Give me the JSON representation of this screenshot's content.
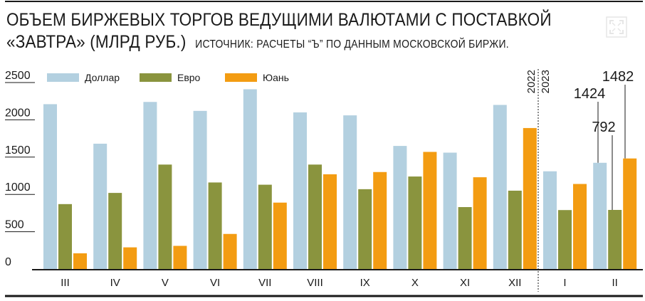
{
  "header": {
    "title_line1": "ОБЪЕМ БИРЖЕВЫХ ТОРГОВ ВЕДУЩИМИ ВАЛЮТАМИ С ПОСТАВКОЙ",
    "title_line2": "«ЗАВТРА» (МЛРД РУБ.)",
    "source": "ИСТОЧНИК: РАСЧЕТЫ “Ъ” ПО ДАННЫМ МОСКОВСКОЙ БИРЖИ."
  },
  "icons": {
    "expand": "expand-icon"
  },
  "colors": {
    "dollar": "#b3d0e0",
    "euro": "#8a943e",
    "yuan": "#f39c12",
    "text": "#1a1a1a",
    "rule": "#1a1a1a"
  },
  "chart_data": {
    "type": "bar",
    "categories": [
      "III",
      "IV",
      "V",
      "VI",
      "VII",
      "VIII",
      "IX",
      "X",
      "XI",
      "XII",
      "I",
      "II"
    ],
    "series": [
      {
        "name": "Доллар",
        "key": "dollar",
        "values": [
          2210,
          1680,
          2240,
          2120,
          2410,
          2100,
          2060,
          1650,
          1560,
          2200,
          1310,
          1424
        ]
      },
      {
        "name": "Евро",
        "key": "euro",
        "values": [
          870,
          1020,
          1400,
          1160,
          1130,
          1400,
          1070,
          1240,
          830,
          1050,
          790,
          792
        ]
      },
      {
        "name": "Юань",
        "key": "yuan",
        "values": [
          210,
          290,
          310,
          470,
          890,
          1270,
          1300,
          1570,
          1230,
          1890,
          1140,
          1482
        ]
      }
    ],
    "ylim": [
      0,
      2500
    ],
    "yticks": [
      "2500",
      "2000",
      "1500",
      "1000",
      "500",
      "0"
    ],
    "year_labels": [
      "2022",
      "2023"
    ],
    "annotations": [
      {
        "category": "II",
        "series": "dollar",
        "text": "1424"
      },
      {
        "category": "II",
        "series": "euro",
        "text": "792"
      },
      {
        "category": "II",
        "series": "yuan",
        "text": "1482"
      }
    ],
    "legend_placement": "top-left",
    "grid": false,
    "title": "ОБЪЕМ БИРЖЕВЫХ ТОРГОВ ВЕДУЩИМИ ВАЛЮТАМИ С ПОСТАВКОЙ «ЗАВТРА» (МЛРД РУБ.)",
    "xlabel": "",
    "ylabel": ""
  }
}
